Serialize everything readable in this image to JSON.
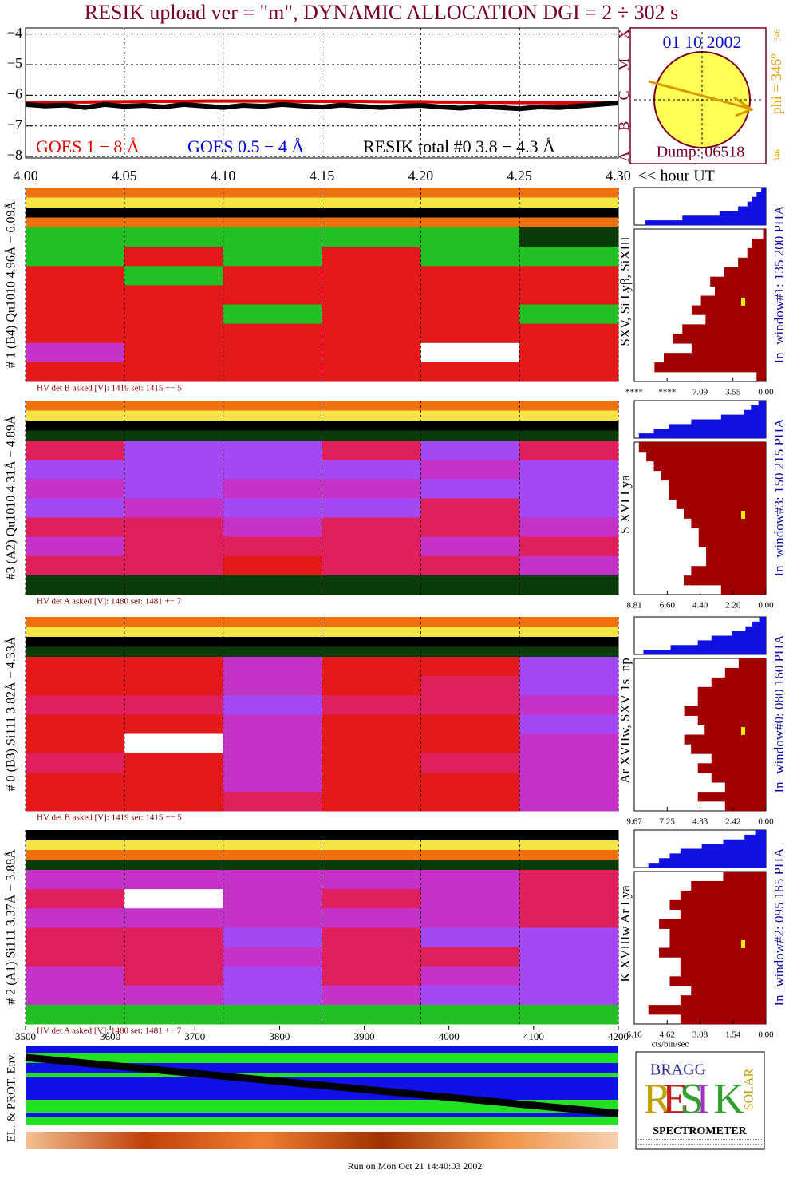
{
  "header": {
    "title": "RESIK upload ver = \"m\", DYNAMIC ALLOCATION  DGI =   2 ÷ 302 s"
  },
  "sun": {
    "date": "01 10 2002",
    "dump": "Dump: 06518",
    "phi": "phi = 346°",
    "phi_small": "346"
  },
  "logo": {
    "top": "BRAGG",
    "letters": [
      "R",
      "E",
      "S",
      "I",
      "K"
    ],
    "side": "SOLAR",
    "bottom": "SPECTROMETER"
  },
  "footer": "Run on Mon Oct 21 14:40:03 2002",
  "colormap": [
    "#000000",
    "#0a3c0a",
    "#22c022",
    "#e41a1a",
    "#e0205c",
    "#c432c8",
    "#a448f4",
    "#f07010",
    "#f4e444",
    "#ffffff"
  ],
  "chart_data": [
    {
      "type": "line",
      "xlabel": "<< hour UT",
      "x": [
        4.0,
        4.01,
        4.02,
        4.03,
        4.04,
        4.05,
        4.06,
        4.07,
        4.08,
        4.09,
        4.1,
        4.11,
        4.12,
        4.13,
        4.14,
        4.15,
        4.16,
        4.17,
        4.18,
        4.19,
        4.2,
        4.21,
        4.22,
        4.23,
        4.24,
        4.25,
        4.26,
        4.27,
        4.28,
        4.29,
        4.3
      ],
      "series": [
        {
          "name": "GOES 1 − 8 Å",
          "color": "#e00000",
          "values": [
            -6.24,
            -6.23,
            -6.22,
            -6.22,
            -6.21,
            -6.21,
            -6.2,
            -6.2,
            -6.2,
            -6.19,
            -6.19,
            -6.19,
            -6.19,
            -6.19,
            -6.2,
            -6.2,
            -6.2,
            -6.2,
            -6.21,
            -6.21,
            -6.21,
            -6.22,
            -6.22,
            -6.23,
            -6.23,
            -6.24,
            -6.24,
            -6.25,
            -6.25,
            -6.24,
            -6.22
          ]
        },
        {
          "name": "GOES 0.5 − 4 Å",
          "color": "#0000e0",
          "values": [
            null,
            null,
            null,
            null,
            null,
            null,
            null,
            null,
            null,
            null,
            null,
            null,
            null,
            null,
            null,
            null,
            null,
            null,
            null,
            null,
            null,
            null,
            null,
            null,
            null,
            null,
            null,
            null,
            null,
            null,
            null
          ]
        },
        {
          "name": "RESIK total #0  3.8 − 4.3 Å",
          "color": "#000000",
          "values": [
            -6.3,
            -6.35,
            -6.32,
            -6.4,
            -6.3,
            -6.36,
            -6.33,
            -6.38,
            -6.3,
            -6.35,
            -6.4,
            -6.33,
            -6.36,
            -6.3,
            -6.35,
            -6.38,
            -6.32,
            -6.36,
            -6.4,
            -6.35,
            -6.33,
            -6.38,
            -6.42,
            -6.36,
            -6.4,
            -6.44,
            -6.38,
            -6.4,
            -6.35,
            -6.3,
            -6.25
          ]
        }
      ],
      "xlim": [
        4.0,
        4.3
      ],
      "xticks": [
        {
          "value": 4.0,
          "label": "4.00"
        },
        4.05,
        {
          "value": 4.1,
          "label": "4.10"
        },
        4.15,
        {
          "value": 4.2,
          "label": "4.20"
        },
        4.25,
        {
          "value": 4.3,
          "label": "4.30"
        }
      ],
      "ylim": [
        -8.05,
        -3.8
      ],
      "yticks": [
        {
          "value": -4,
          "label": "−4"
        },
        {
          "value": -5,
          "label": "−5"
        },
        {
          "value": -6,
          "label": "−6"
        },
        {
          "value": -7,
          "label": "−7"
        },
        {
          "value": -8,
          "label": "−8"
        }
      ],
      "y2lim": [
        -8.05,
        -3.8
      ],
      "y2ticks": [
        {
          "value": -8,
          "label": "A"
        },
        {
          "value": -7,
          "label": "B"
        },
        {
          "value": -6,
          "label": "C"
        },
        {
          "value": -5,
          "label": "M"
        },
        {
          "value": -4,
          "label": "X"
        }
      ],
      "grid": true
    },
    {
      "type": "heatmap",
      "title": "# 1 (B4) Qu1010 4.96Å − 6.09Å",
      "line_label": "SXV, Si Lyβ, SiXIII",
      "hv_text": "HV det B asked [V]:  1419 set:  1415 +−   5",
      "window_label": "In−window#1:  135 200 PHA",
      "z": [
        [
          7,
          7,
          7,
          7,
          7,
          7
        ],
        [
          8,
          8,
          8,
          8,
          8,
          8
        ],
        [
          0,
          0,
          0,
          0,
          0,
          0
        ],
        [
          7,
          7,
          7,
          7,
          7,
          7
        ],
        [
          2,
          2,
          2,
          2,
          2,
          1
        ],
        [
          2,
          3,
          2,
          3,
          2,
          2
        ],
        [
          3,
          2,
          3,
          3,
          3,
          3
        ],
        [
          3,
          3,
          3,
          3,
          3,
          3
        ],
        [
          3,
          3,
          2,
          3,
          3,
          2
        ],
        [
          3,
          3,
          3,
          3,
          3,
          3
        ],
        [
          5,
          3,
          3,
          3,
          9,
          3
        ],
        [
          3,
          3,
          3,
          3,
          3,
          3
        ]
      ],
      "small_color": "#1010e0",
      "pha_small": [
        0.5,
        1,
        1.5,
        2,
        3,
        5,
        9,
        13
      ],
      "color": "#a00000",
      "pha": [
        0.3,
        1.5,
        2,
        3,
        4.5,
        6,
        5.5,
        7,
        8,
        6.5,
        9,
        10,
        8,
        11,
        12,
        1
      ],
      "xlim": [
        14.18,
        0
      ],
      "xticks": [
        {
          "value": 14.18,
          "label": "****"
        },
        {
          "value": 10.64,
          "label": "****"
        },
        7.09,
        3.55,
        {
          "value": 0,
          "label": "0.00"
        }
      ]
    },
    {
      "type": "heatmap",
      "title": "#3 (A2) Qu1010  4.31Å − 4.89Å",
      "line_label": "S XVI Lya",
      "hv_text": "HV det A asked [V]:  1480 set:  1481 +−   7",
      "window_label": "In−window#3:  150 215 PHA",
      "z": [
        [
          7,
          7,
          7,
          7,
          7,
          7
        ],
        [
          8,
          8,
          8,
          8,
          8,
          8
        ],
        [
          0,
          0,
          0,
          0,
          0,
          0
        ],
        [
          1,
          1,
          1,
          1,
          1,
          1
        ],
        [
          4,
          6,
          6,
          4,
          6,
          4
        ],
        [
          6,
          6,
          6,
          6,
          5,
          6
        ],
        [
          5,
          6,
          5,
          5,
          6,
          6
        ],
        [
          6,
          5,
          6,
          6,
          4,
          6
        ],
        [
          4,
          4,
          5,
          4,
          4,
          5
        ],
        [
          5,
          4,
          4,
          4,
          5,
          4
        ],
        [
          4,
          4,
          3,
          4,
          4,
          5
        ],
        [
          1,
          1,
          1,
          1,
          1,
          1
        ]
      ],
      "small_color": "#1010e0",
      "pha_small": [
        0.5,
        1,
        1.5,
        3,
        5,
        6.5,
        7.5,
        8.5
      ],
      "color": "#a00000",
      "pha": [
        8.5,
        8,
        7.5,
        7,
        6.5,
        6.5,
        6,
        5.5,
        5,
        4.5,
        4.5,
        4,
        4,
        5,
        5.5,
        3
      ],
      "xlim": [
        8.81,
        0
      ],
      "xticks": [
        8.81,
        {
          "value": 6.6,
          "label": "6.60"
        },
        {
          "value": 4.4,
          "label": "4.40"
        },
        {
          "value": 2.2,
          "label": "2.20"
        },
        {
          "value": 0,
          "label": "0.00"
        }
      ]
    },
    {
      "type": "heatmap",
      "title": "# 0 (B3) Si111  3.82Å − 4.33Å",
      "line_label": "Ar XVIIw,  SXV 1s−np",
      "hv_text": "HV det B asked [V]:  1419 set:  1415 +−   5",
      "window_label": "In−window#0:  080 160 PHA",
      "z": [
        [
          7,
          7,
          7,
          7,
          7,
          7
        ],
        [
          8,
          8,
          8,
          8,
          8,
          8
        ],
        [
          0,
          0,
          0,
          0,
          0,
          0
        ],
        [
          1,
          1,
          1,
          1,
          1,
          1
        ],
        [
          3,
          3,
          5,
          3,
          3,
          6
        ],
        [
          3,
          3,
          5,
          3,
          4,
          6
        ],
        [
          4,
          4,
          6,
          4,
          4,
          5
        ],
        [
          3,
          3,
          5,
          3,
          3,
          6
        ],
        [
          3,
          9,
          5,
          3,
          3,
          5
        ],
        [
          4,
          3,
          5,
          3,
          4,
          5
        ],
        [
          3,
          3,
          5,
          3,
          3,
          5
        ],
        [
          3,
          3,
          4,
          3,
          3,
          5
        ]
      ],
      "small_color": "#1010e0",
      "pha_small": [
        0.5,
        1,
        1.5,
        2.5,
        4,
        5,
        7,
        9
      ],
      "color": "#a00000",
      "pha": [
        2,
        3,
        4,
        5,
        5,
        6,
        5,
        4.5,
        6,
        5.5,
        4,
        5,
        4,
        3,
        5,
        3
      ],
      "xlim": [
        9.67,
        0
      ],
      "xticks": [
        9.67,
        7.25,
        4.83,
        2.42,
        {
          "value": 0,
          "label": "0.00"
        }
      ]
    },
    {
      "type": "heatmap",
      "title": "# 2 (A1) Si111  3.37Å − 3.88Å",
      "line_label": "K XVIIIw  Ar Lya",
      "hv_text": "HV det A asked [V]:  1480 set:  1481 +−   7",
      "window_label": "In−window#2:  095 185 PHA",
      "xlabel": "cts/bin/sec",
      "z": [
        [
          0,
          0,
          0,
          0,
          0,
          0
        ],
        [
          8,
          8,
          8,
          8,
          8,
          8
        ],
        [
          7,
          7,
          7,
          7,
          7,
          7
        ],
        [
          1,
          1,
          1,
          1,
          1,
          1
        ],
        [
          5,
          5,
          5,
          5,
          5,
          4
        ],
        [
          4,
          9,
          5,
          4,
          5,
          4
        ],
        [
          5,
          5,
          5,
          5,
          5,
          4
        ],
        [
          4,
          4,
          6,
          4,
          6,
          6
        ],
        [
          4,
          4,
          5,
          4,
          4,
          6
        ],
        [
          5,
          4,
          6,
          4,
          5,
          6
        ],
        [
          5,
          5,
          6,
          5,
          6,
          6
        ],
        [
          2,
          2,
          2,
          2,
          2,
          2
        ]
      ],
      "small_color": "#1010e0",
      "pha_small": [
        0.5,
        1,
        2,
        3,
        4,
        4.5,
        5,
        5.5
      ],
      "color": "#a00000",
      "pha": [
        2,
        3.5,
        4,
        4.5,
        4,
        5,
        4.5,
        4.5,
        5,
        4,
        4,
        4.5,
        3.5,
        4,
        5.5,
        4
      ],
      "xlim": [
        6.16,
        0
      ],
      "xticks": [
        6.16,
        4.62,
        3.08,
        1.54,
        {
          "value": 0,
          "label": "0.00"
        }
      ]
    },
    {
      "type": "env",
      "title": "EL. & PROT. Env.",
      "color": "#000000",
      "x": [
        3500,
        4200
      ],
      "values": [
        0.85,
        0.15
      ],
      "xlim": [
        3500,
        4200
      ],
      "ylim": [
        0,
        1
      ],
      "xticks": [
        3500,
        3600,
        3700,
        3800,
        3900,
        4000,
        4100,
        4200
      ]
    }
  ]
}
